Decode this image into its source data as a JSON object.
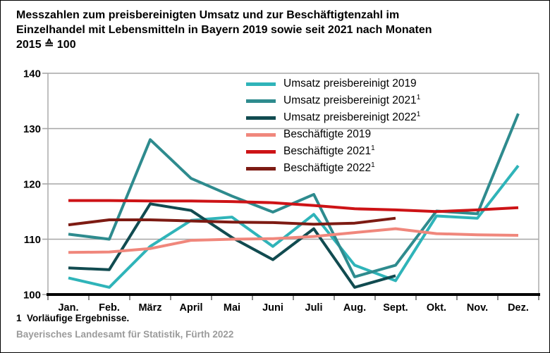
{
  "title": {
    "lines": [
      "Messzahlen zum preisbereinigten Umsatz und zur Beschäftigtenzahl im",
      "Einzelhandel mit Lebensmitteln in Bayern 2019 sowie seit 2021 nach Monaten",
      "2015 ≙ 100"
    ]
  },
  "footnote": "1  Vorläufige Ergebnisse.",
  "source": "Bayerisches Landesamt für Statistik, Fürth 2022",
  "style": {
    "grid_color": "#A6A6A6",
    "tick_color": "#6E6E6E",
    "baseline_color": "#000000",
    "axis_label_color": "#000000",
    "source_color": "#9B9B9B"
  },
  "chart_data": {
    "type": "line",
    "title": "Messzahlen zum preisbereinigten Umsatz und zur Beschäftigtenzahl im Einzelhandel mit Lebensmitteln in Bayern 2019 sowie seit 2021 nach Monaten",
    "index_note": "2015 ≙ 100",
    "categories": [
      "Jan.",
      "Feb.",
      "März",
      "April",
      "Mai",
      "Juni",
      "Juli",
      "Aug.",
      "Sept.",
      "Okt.",
      "Nov.",
      "Dez."
    ],
    "ylim": [
      100,
      140
    ],
    "yticks": [
      100,
      110,
      120,
      130,
      140
    ],
    "grid": true,
    "legend_position": "top-center",
    "series": [
      {
        "name": "Umsatz preisbereinigt 2019",
        "superscript": "",
        "color": "#2FB4B9",
        "values": [
          103.0,
          101.3,
          108.7,
          113.4,
          114.0,
          108.7,
          114.5,
          105.3,
          102.5,
          114.2,
          113.8,
          123.3
        ]
      },
      {
        "name": "Umsatz preisbereinigt 2021",
        "superscript": "1",
        "color": "#2E8B8E",
        "values": [
          110.9,
          110.0,
          128.0,
          121.0,
          117.8,
          114.9,
          118.1,
          103.2,
          105.3,
          115.1,
          114.6,
          132.7
        ]
      },
      {
        "name": "Umsatz preisbereinigt 2022",
        "superscript": "1",
        "color": "#114B50",
        "values": [
          104.8,
          104.5,
          116.4,
          115.2,
          110.3,
          106.3,
          111.9,
          101.3,
          103.4,
          null,
          null,
          null
        ]
      },
      {
        "name": "Beschäftigte 2019",
        "superscript": "",
        "color": "#F0877C",
        "values": [
          107.6,
          107.7,
          108.3,
          109.8,
          110.0,
          110.1,
          110.5,
          111.2,
          111.9,
          111.0,
          110.8,
          110.7
        ]
      },
      {
        "name": "Beschäftigte 2021",
        "superscript": "1",
        "color": "#CD1316",
        "values": [
          117.0,
          117.0,
          116.9,
          116.9,
          116.8,
          116.6,
          116.1,
          115.5,
          115.3,
          115.0,
          115.3,
          115.7
        ]
      },
      {
        "name": "Beschäftigte 2022",
        "superscript": "1",
        "color": "#7D1B13",
        "values": [
          112.6,
          113.5,
          113.5,
          113.3,
          113.1,
          113.0,
          112.7,
          112.9,
          113.8,
          null,
          null,
          null
        ]
      }
    ]
  }
}
